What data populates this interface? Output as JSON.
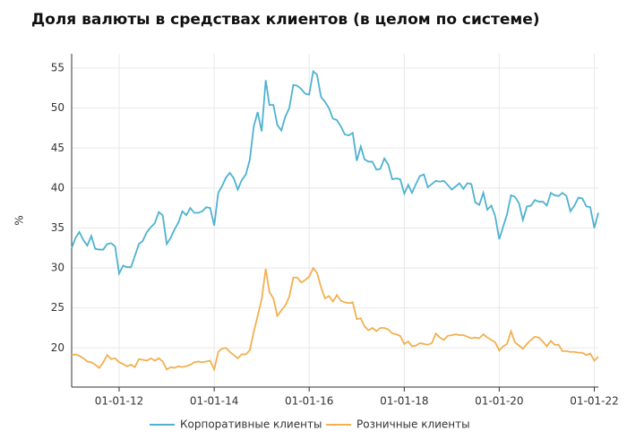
{
  "chart_data": {
    "type": "line",
    "title": "Доля валюты в средствах клиентов (в целом по системе)",
    "y_label": "%",
    "x": [
      "2011-01-01",
      "2011-02-01",
      "2011-03-01",
      "2011-04-01",
      "2011-05-01",
      "2011-06-01",
      "2011-07-01",
      "2011-08-01",
      "2011-09-01",
      "2011-10-01",
      "2011-11-01",
      "2011-12-01",
      "2012-01-01",
      "2012-02-01",
      "2012-03-01",
      "2012-04-01",
      "2012-05-01",
      "2012-06-01",
      "2012-07-01",
      "2012-08-01",
      "2012-09-01",
      "2012-10-01",
      "2012-11-01",
      "2012-12-01",
      "2013-01-01",
      "2013-02-01",
      "2013-03-01",
      "2013-04-01",
      "2013-05-01",
      "2013-06-01",
      "2013-07-01",
      "2013-08-01",
      "2013-09-01",
      "2013-10-01",
      "2013-11-01",
      "2013-12-01",
      "2014-01-01",
      "2014-02-01",
      "2014-03-01",
      "2014-04-01",
      "2014-05-01",
      "2014-06-01",
      "2014-07-01",
      "2014-08-01",
      "2014-09-01",
      "2014-10-01",
      "2014-11-01",
      "2014-12-01",
      "2015-01-01",
      "2015-02-01",
      "2015-03-01",
      "2015-04-01",
      "2015-05-01",
      "2015-06-01",
      "2015-07-01",
      "2015-08-01",
      "2015-09-01",
      "2015-10-01",
      "2015-11-01",
      "2015-12-01",
      "2016-01-01",
      "2016-02-01",
      "2016-03-01",
      "2016-04-01",
      "2016-05-01",
      "2016-06-01",
      "2016-07-01",
      "2016-08-01",
      "2016-09-01",
      "2016-10-01",
      "2016-11-01",
      "2016-12-01",
      "2017-01-01",
      "2017-02-01",
      "2017-03-01",
      "2017-04-01",
      "2017-05-01",
      "2017-06-01",
      "2017-07-01",
      "2017-08-01",
      "2017-09-01",
      "2017-10-01",
      "2017-11-01",
      "2017-12-01",
      "2018-01-01",
      "2018-02-01",
      "2018-03-01",
      "2018-04-01",
      "2018-05-01",
      "2018-06-01",
      "2018-07-01",
      "2018-08-01",
      "2018-09-01",
      "2018-10-01",
      "2018-11-01",
      "2018-12-01",
      "2019-01-01",
      "2019-02-01",
      "2019-03-01",
      "2019-04-01",
      "2019-05-01",
      "2019-06-01",
      "2019-07-01",
      "2019-08-01",
      "2019-09-01",
      "2019-10-01",
      "2019-11-01",
      "2019-12-01",
      "2020-01-01",
      "2020-02-01",
      "2020-03-01",
      "2020-04-01",
      "2020-05-01",
      "2020-06-01",
      "2020-07-01",
      "2020-08-01",
      "2020-09-01",
      "2020-10-01",
      "2020-11-01",
      "2020-12-01",
      "2021-01-01",
      "2021-02-01",
      "2021-03-01",
      "2021-04-01",
      "2021-05-01",
      "2021-06-01",
      "2021-07-01",
      "2021-08-01",
      "2021-09-01",
      "2021-10-01",
      "2021-11-01",
      "2021-12-01",
      "2022-01-01",
      "2022-02-01"
    ],
    "series": [
      {
        "name": "Корпоративные клиенты",
        "color": "#4eb2d0",
        "values": [
          32.5,
          33.8,
          34.5,
          33.5,
          32.8,
          34.0,
          32.4,
          32.3,
          32.3,
          33.0,
          33.1,
          32.7,
          29.3,
          30.3,
          30.1,
          30.1,
          31.5,
          33.0,
          33.4,
          34.5,
          35.1,
          35.6,
          37.0,
          36.6,
          33.0,
          33.8,
          34.8,
          35.7,
          37.1,
          36.6,
          37.5,
          36.9,
          36.9,
          37.1,
          37.6,
          37.5,
          35.3,
          39.4,
          40.2,
          41.3,
          41.9,
          41.2,
          39.8,
          41.0,
          41.7,
          43.5,
          47.7,
          49.5,
          47.1,
          53.5,
          50.4,
          50.4,
          47.9,
          47.2,
          48.9,
          50.0,
          52.9,
          52.8,
          52.4,
          51.8,
          51.7,
          54.6,
          54.2,
          51.4,
          50.8,
          50.0,
          48.7,
          48.5,
          47.7,
          46.7,
          46.6,
          46.9,
          43.4,
          45.2,
          43.6,
          43.3,
          43.3,
          42.3,
          42.4,
          43.7,
          42.9,
          41.1,
          41.2,
          41.1,
          39.3,
          40.4,
          39.4,
          40.5,
          41.5,
          41.7,
          40.1,
          40.5,
          40.9,
          40.8,
          40.9,
          40.4,
          39.8,
          40.2,
          40.6,
          39.9,
          40.6,
          40.5,
          38.2,
          37.9,
          39.4,
          37.3,
          37.8,
          36.5,
          33.6,
          35.2,
          36.7,
          39.1,
          38.9,
          38.1,
          36.0,
          37.7,
          37.8,
          38.5,
          38.3,
          38.3,
          37.8,
          39.4,
          39.1,
          39.0,
          39.4,
          39.0,
          37.1,
          37.8,
          38.8,
          38.7,
          37.7,
          37.6,
          35.0,
          36.9
        ]
      },
      {
        "name": "Розничные клиенты",
        "color": "#f2b050",
        "values": [
          19.1,
          19.2,
          19.0,
          18.7,
          18.3,
          18.2,
          17.9,
          17.5,
          18.2,
          19.1,
          18.6,
          18.7,
          18.2,
          18.0,
          17.7,
          17.9,
          17.6,
          18.6,
          18.5,
          18.4,
          18.7,
          18.4,
          18.7,
          18.3,
          17.3,
          17.6,
          17.5,
          17.7,
          17.6,
          17.7,
          17.9,
          18.2,
          18.3,
          18.2,
          18.3,
          18.4,
          17.3,
          19.5,
          19.9,
          20.0,
          19.5,
          19.1,
          18.7,
          19.2,
          19.2,
          19.7,
          22.0,
          24.0,
          26.1,
          29.9,
          27.0,
          26.2,
          24.0,
          24.7,
          25.3,
          26.4,
          28.8,
          28.8,
          28.2,
          28.5,
          28.9,
          30.0,
          29.4,
          27.6,
          26.2,
          26.5,
          25.8,
          26.6,
          25.9,
          25.7,
          25.6,
          25.7,
          23.6,
          23.7,
          22.7,
          22.2,
          22.5,
          22.1,
          22.5,
          22.5,
          22.3,
          21.8,
          21.7,
          21.5,
          20.5,
          20.8,
          20.2,
          20.3,
          20.6,
          20.5,
          20.4,
          20.6,
          21.8,
          21.3,
          21.0,
          21.5,
          21.6,
          21.7,
          21.6,
          21.6,
          21.4,
          21.2,
          21.3,
          21.2,
          21.7,
          21.3,
          21.0,
          20.7,
          19.7,
          20.2,
          20.5,
          22.1,
          20.7,
          20.3,
          19.9,
          20.5,
          21.0,
          21.4,
          21.3,
          20.8,
          20.2,
          20.9,
          20.4,
          20.4,
          19.6,
          19.6,
          19.5,
          19.5,
          19.4,
          19.4,
          19.1,
          19.3,
          18.4,
          18.9
        ]
      }
    ],
    "xlim": [
      "2011-01-01",
      "2022-02-01"
    ],
    "xticks": [
      {
        "value": "2012-01-01",
        "label": "01-01-12"
      },
      {
        "value": "2014-01-01",
        "label": "01-01-14"
      },
      {
        "value": "2016-01-01",
        "label": "01-01-16"
      },
      {
        "value": "2018-01-01",
        "label": "01-01-18"
      },
      {
        "value": "2020-01-01",
        "label": "01-01-20"
      },
      {
        "value": "2022-01-01",
        "label": "01-01-22"
      }
    ],
    "ylim": [
      15.1,
      56.8
    ],
    "yticks": [
      20,
      25,
      30,
      35,
      40,
      45,
      50,
      55
    ],
    "grid": true,
    "legend": "bottom"
  }
}
